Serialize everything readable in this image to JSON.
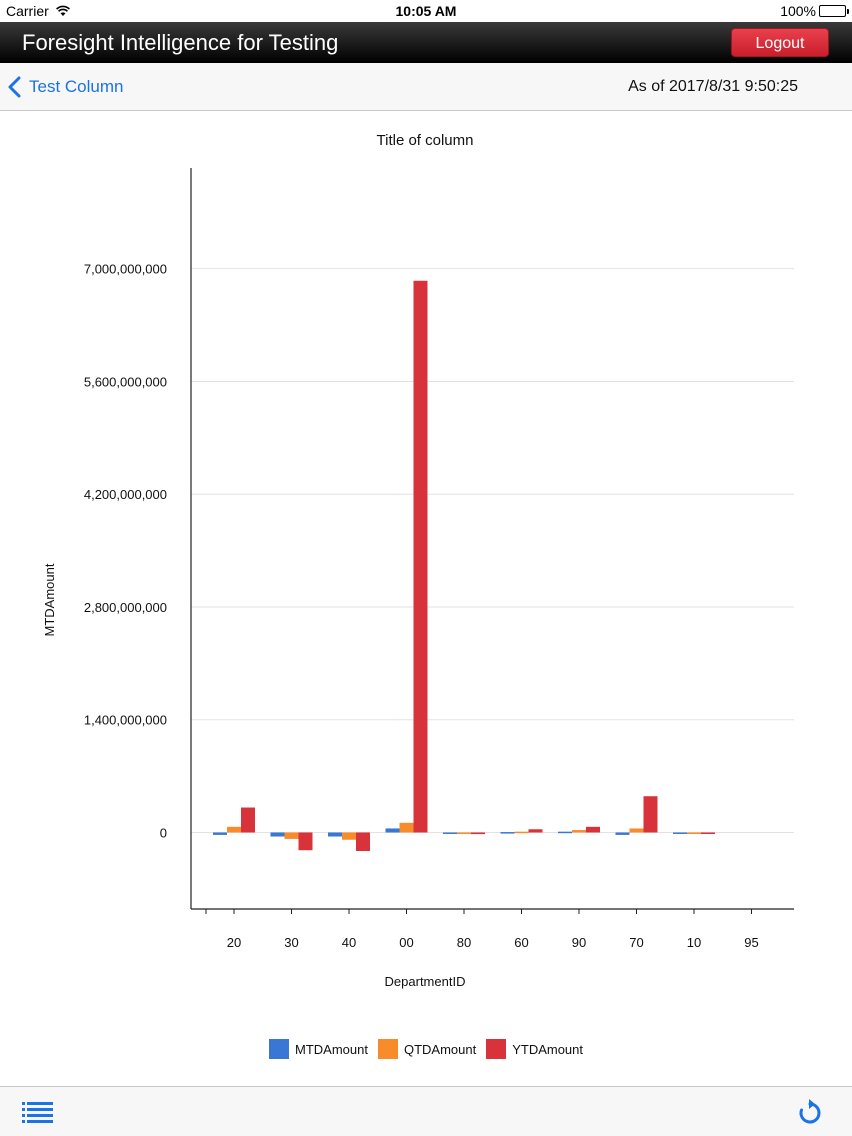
{
  "status_bar": {
    "carrier": "Carrier",
    "time": "10:05 AM",
    "battery": "100%"
  },
  "header": {
    "title": "Foresight Intelligence for Testing",
    "logout_label": "Logout"
  },
  "nav": {
    "back_label": "Test Column",
    "as_of": "As of 2017/8/31 9:50:25"
  },
  "colors": {
    "MTDAmount": "#3a76d4",
    "QTDAmount": "#f98c2a",
    "YTDAmount": "#d8323a",
    "accent": "#1a73e8"
  },
  "chart_data": {
    "type": "bar",
    "title": "Title of column",
    "xlabel": "DepartmentID",
    "ylabel": "MTDAmount",
    "ylim": [
      -950000000,
      8250000000
    ],
    "yticks": [
      0,
      1400000000,
      2800000000,
      4200000000,
      5600000000,
      7000000000
    ],
    "ytick_labels": [
      "0",
      "1,400,000,000",
      "2,800,000,000",
      "4,200,000,000",
      "5,600,000,000",
      "7,000,000,000"
    ],
    "grid": true,
    "legend_position": "bottom",
    "categories": [
      "20",
      "30",
      "40",
      "00",
      "80",
      "60",
      "90",
      "70",
      "10",
      "95"
    ],
    "series": [
      {
        "name": "MTDAmount",
        "values": [
          -30000000,
          -50000000,
          -50000000,
          50000000,
          -5000000,
          5000000,
          10000000,
          -30000000,
          -5000000,
          0
        ]
      },
      {
        "name": "QTDAmount",
        "values": [
          70000000,
          -80000000,
          -90000000,
          120000000,
          -10000000,
          10000000,
          30000000,
          50000000,
          -10000000,
          0
        ]
      },
      {
        "name": "YTDAmount",
        "values": [
          310000000,
          -220000000,
          -230000000,
          6850000000,
          -20000000,
          40000000,
          70000000,
          450000000,
          -10000000,
          0
        ]
      }
    ]
  }
}
